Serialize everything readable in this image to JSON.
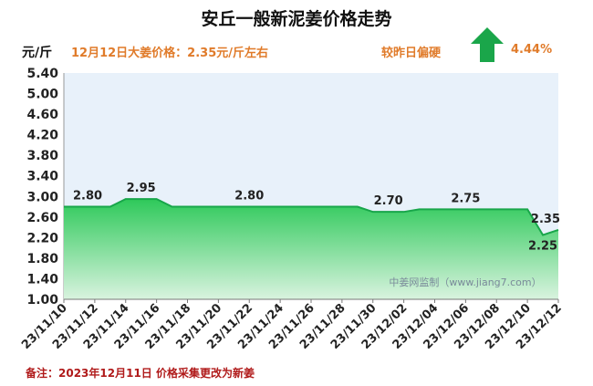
{
  "header": {
    "title": "安丘一般新泥姜价格走势",
    "unit": "元/斤",
    "price_note": "12月12日大姜价格：2.35元/斤左右",
    "compare_text": "较昨日偏硬",
    "change_pct": "4.44%",
    "trend_icon": "up-arrow-icon"
  },
  "watermark": "中姜网监制（www.jiang7.com）",
  "footnote": "备注：2023年12月11日 价格采集更改为新姜",
  "colors": {
    "accent_orange": "#e07b2a",
    "line_green": "#18a64a",
    "arrow_green": "#1aa64a",
    "footnote_red": "#b01a1a"
  },
  "chart_data": {
    "type": "area",
    "title": "安丘一般新泥姜价格走势",
    "ylabel": "元/斤",
    "ylim": [
      1.0,
      5.4
    ],
    "yticks": [
      "1.00",
      "1.40",
      "1.80",
      "2.20",
      "2.60",
      "3.00",
      "3.40",
      "3.80",
      "4.20",
      "4.60",
      "5.00",
      "5.40"
    ],
    "xtick_labels": [
      "23/11/10",
      "23/11/12",
      "23/11/14",
      "23/11/16",
      "23/11/18",
      "23/11/20",
      "23/11/22",
      "23/11/24",
      "23/11/26",
      "23/11/28",
      "23/11/30",
      "23/12/02",
      "23/12/04",
      "23/12/06",
      "23/12/08",
      "23/12/10",
      "23/12/12"
    ],
    "x": [
      "23/11/10",
      "23/11/11",
      "23/11/12",
      "23/11/13",
      "23/11/14",
      "23/11/15",
      "23/11/16",
      "23/11/17",
      "23/11/18",
      "23/11/19",
      "23/11/20",
      "23/11/21",
      "23/11/22",
      "23/11/23",
      "23/11/24",
      "23/11/25",
      "23/11/26",
      "23/11/27",
      "23/11/28",
      "23/11/29",
      "23/11/30",
      "23/12/01",
      "23/12/02",
      "23/12/03",
      "23/12/04",
      "23/12/05",
      "23/12/06",
      "23/12/07",
      "23/12/08",
      "23/12/09",
      "23/12/10",
      "23/12/11",
      "23/12/12"
    ],
    "series": [
      {
        "values": [
          2.8,
          2.8,
          2.8,
          2.8,
          2.95,
          2.95,
          2.95,
          2.8,
          2.8,
          2.8,
          2.8,
          2.8,
          2.8,
          2.8,
          2.8,
          2.8,
          2.8,
          2.8,
          2.8,
          2.8,
          2.7,
          2.7,
          2.7,
          2.75,
          2.75,
          2.75,
          2.75,
          2.75,
          2.75,
          2.75,
          2.75,
          2.25,
          2.35
        ]
      }
    ],
    "data_labels": [
      {
        "index": 0,
        "text": "2.80",
        "pos": "above"
      },
      {
        "index": 5,
        "text": "2.95",
        "pos": "above"
      },
      {
        "index": 12,
        "text": "2.80",
        "pos": "above"
      },
      {
        "index": 21,
        "text": "2.70",
        "pos": "above"
      },
      {
        "index": 26,
        "text": "2.75",
        "pos": "above"
      },
      {
        "index": 31,
        "text": "2.25",
        "pos": "below"
      },
      {
        "index": 32,
        "text": "2.35",
        "pos": "above"
      }
    ],
    "grid": false
  }
}
